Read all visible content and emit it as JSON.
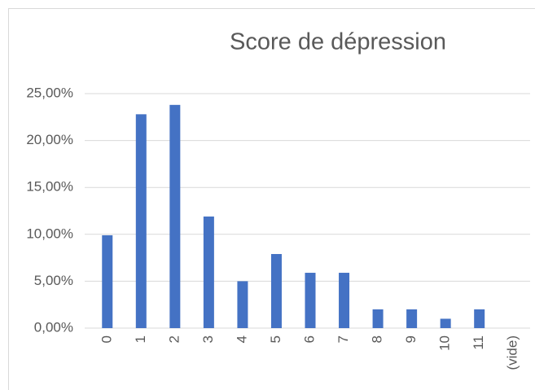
{
  "chart_data": {
    "type": "bar",
    "title": "Score de dépression",
    "categories": [
      "0",
      "1",
      "2",
      "3",
      "4",
      "5",
      "6",
      "7",
      "8",
      "9",
      "10",
      "11",
      "(vide)"
    ],
    "values": [
      9.9,
      22.8,
      23.8,
      11.9,
      5.0,
      7.9,
      5.9,
      5.9,
      2.0,
      2.0,
      1.0,
      2.0,
      null
    ],
    "color": "#4472c4",
    "ylim": [
      0,
      25
    ],
    "yticks": [
      {
        "value": 0,
        "label": "0,00%"
      },
      {
        "value": 5,
        "label": "5,00%"
      },
      {
        "value": 10,
        "label": "10,00%"
      },
      {
        "value": 15,
        "label": "15,00%"
      },
      {
        "value": 20,
        "label": "20,00%"
      },
      {
        "value": 25,
        "label": "25,00%"
      }
    ],
    "grid": true
  }
}
